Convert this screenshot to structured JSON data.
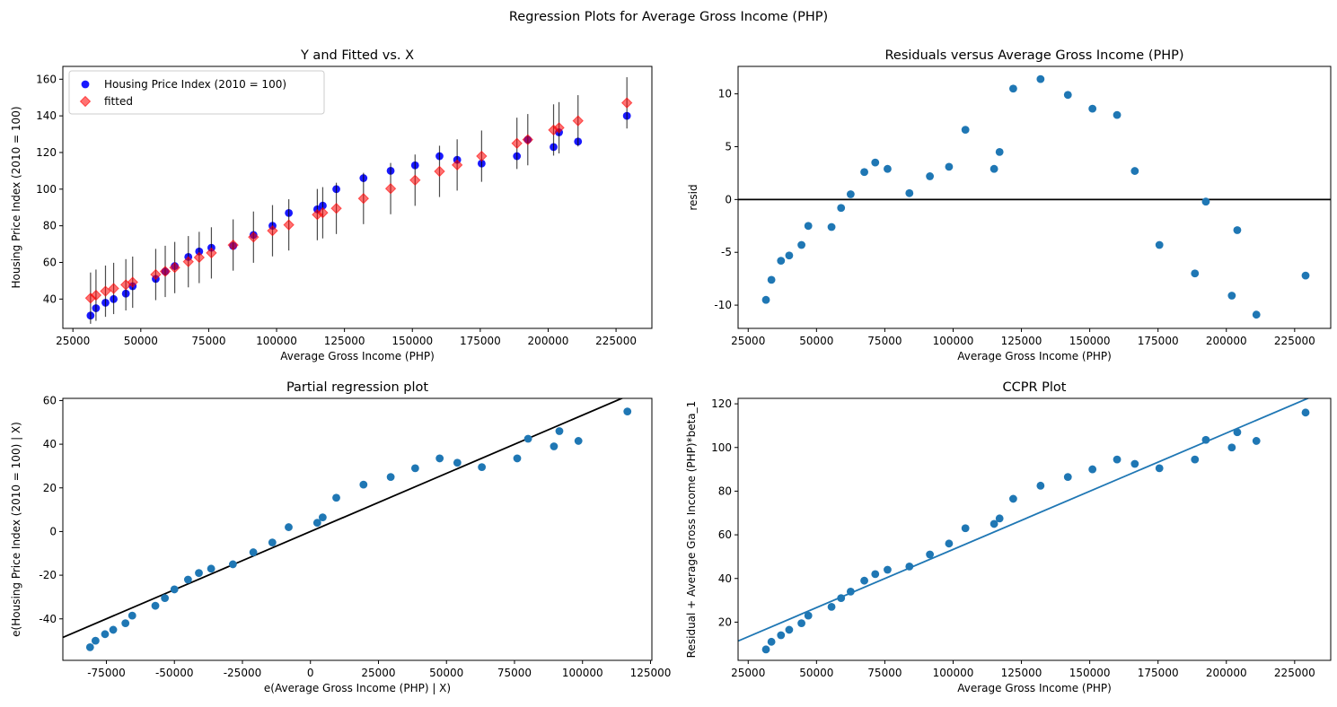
{
  "figure": {
    "suptitle": "Regression Plots for Average Gross Income (PHP)"
  },
  "colors": {
    "observed": "#0000ff",
    "fitted": "#ff0000",
    "scatter": "#1f77b4",
    "refline": "#000000",
    "errorbar": "#000000"
  },
  "chart_data": [
    {
      "id": "y-fitted",
      "type": "scatter",
      "title": "Y and Fitted vs. X",
      "xlabel": "Average Gross Income (PHP)",
      "ylabel": "Housing Price Index (2010 = 100)",
      "xlim": [
        21300,
        238200
      ],
      "ylim": [
        24,
        167
      ],
      "xticks": [
        25000,
        50000,
        75000,
        100000,
        125000,
        150000,
        175000,
        200000,
        225000
      ],
      "yticks": [
        40,
        60,
        80,
        100,
        120,
        140,
        160
      ],
      "legend": {
        "placement": "upper-left",
        "entries": [
          "Housing Price Index (2010 = 100)",
          "fitted"
        ]
      },
      "series": [
        {
          "name": "Housing Price Index (2010 = 100)",
          "marker": "circle",
          "x": [
            31500,
            33500,
            37000,
            40000,
            44500,
            47000,
            55500,
            59000,
            62500,
            67500,
            71500,
            76000,
            84000,
            91500,
            98500,
            104500,
            115000,
            117000,
            122000,
            132000,
            142000,
            151000,
            160000,
            166500,
            175500,
            188500,
            192500,
            202000,
            204000,
            211000,
            229000
          ],
          "y": [
            31,
            35,
            38,
            40,
            43,
            47,
            51,
            55,
            58,
            63,
            66,
            68,
            69,
            75,
            80,
            87,
            89,
            91,
            100,
            106,
            110,
            113,
            118,
            116,
            114,
            118,
            127,
            123,
            131,
            126,
            140
          ]
        },
        {
          "name": "fitted",
          "marker": "diamond",
          "x": [
            31500,
            33500,
            37000,
            40000,
            44500,
            47000,
            55500,
            59000,
            62500,
            67500,
            71500,
            76000,
            84000,
            91500,
            98500,
            104500,
            115000,
            117000,
            122000,
            132000,
            142000,
            151000,
            160000,
            166500,
            175500,
            188500,
            192500,
            202000,
            204000,
            211000,
            229000
          ],
          "y": [
            40.5,
            42.1,
            44.3,
            45.8,
            47.8,
            49.2,
            53.4,
            55.1,
            57.2,
            60.4,
            62.7,
            65.2,
            69.5,
            73.8,
            77.3,
            80.5,
            86.1,
            87.1,
            89.5,
            94.9,
            100.3,
            104.9,
            109.7,
            113.2,
            118.0,
            125.0,
            127.0,
            132.3,
            133.5,
            137.3,
            147.1
          ],
          "ci_half_width": 14
        }
      ]
    },
    {
      "id": "residuals",
      "type": "scatter",
      "title": "Residuals versus Average Gross Income (PHP)",
      "xlabel": "Average Gross Income (PHP)",
      "ylabel": "resid",
      "xlim": [
        21300,
        238200
      ],
      "ylim": [
        -12.2,
        12.6
      ],
      "xticks": [
        25000,
        50000,
        75000,
        100000,
        125000,
        150000,
        175000,
        200000,
        225000
      ],
      "yticks": [
        -10,
        -5,
        0,
        5,
        10
      ],
      "hline": 0,
      "series": [
        {
          "x": [
            31500,
            33500,
            37000,
            40000,
            44500,
            47000,
            55500,
            59000,
            62500,
            67500,
            71500,
            76000,
            84000,
            91500,
            98500,
            104500,
            115000,
            117000,
            122000,
            132000,
            142000,
            151000,
            160000,
            166500,
            175500,
            188500,
            192500,
            202000,
            204000,
            211000,
            229000
          ],
          "y": [
            -9.5,
            -7.6,
            -5.8,
            -5.3,
            -4.3,
            -2.5,
            -2.6,
            -0.8,
            0.5,
            2.6,
            3.5,
            2.9,
            0.6,
            2.2,
            3.1,
            6.6,
            2.9,
            4.5,
            10.5,
            11.4,
            9.9,
            8.6,
            8.0,
            2.7,
            -4.3,
            -7.0,
            -0.2,
            -9.1,
            -2.9,
            -10.9,
            -7.2
          ]
        }
      ]
    },
    {
      "id": "partial-regression",
      "type": "scatter",
      "title": "Partial regression plot",
      "xlabel": "e(Average Gross Income (PHP) | X)",
      "ylabel": "e(Housing Price Index (2010 = 100) | X)",
      "xlim": [
        -91000,
        125500
      ],
      "ylim": [
        -59,
        61
      ],
      "xticks": [
        -75000,
        -50000,
        -25000,
        0,
        25000,
        50000,
        75000,
        100000,
        125000
      ],
      "yticks": [
        -40,
        -20,
        0,
        20,
        40,
        60
      ],
      "fit_line": {
        "slope": 0.000533,
        "intercept": 0
      },
      "series": [
        {
          "x": [
            -81000,
            -79000,
            -75500,
            -72500,
            -68000,
            -65500,
            -57000,
            -53500,
            -50000,
            -45000,
            -41000,
            -36500,
            -28500,
            -21000,
            -14000,
            -8000,
            2500,
            4500,
            9500,
            19500,
            29500,
            38500,
            47500,
            54000,
            63000,
            76000,
            80000,
            89500,
            91500,
            98500,
            116500
          ],
          "y": [
            -53,
            -50,
            -47,
            -45,
            -42,
            -38.5,
            -34,
            -30.5,
            -26.5,
            -22,
            -19,
            -17,
            -15,
            -9.5,
            -5,
            2,
            4,
            6.5,
            15.5,
            21.5,
            25,
            29,
            33.5,
            31.5,
            29.5,
            33.5,
            42.5,
            39,
            46,
            41.5,
            55
          ]
        }
      ]
    },
    {
      "id": "ccpr",
      "type": "scatter",
      "title": "CCPR Plot",
      "xlabel": "Average Gross Income (PHP)",
      "ylabel": "Residual + Average Gross Income (PHP)*beta_1",
      "xlim": [
        21300,
        238200
      ],
      "ylim": [
        2.5,
        122.5
      ],
      "xticks": [
        25000,
        50000,
        75000,
        100000,
        125000,
        150000,
        175000,
        200000,
        225000
      ],
      "yticks": [
        20,
        40,
        60,
        80,
        100,
        120
      ],
      "fit_line": {
        "slope": 0.000533,
        "intercept": 0
      },
      "series": [
        {
          "x": [
            31500,
            33500,
            37000,
            40000,
            44500,
            47000,
            55500,
            59000,
            62500,
            67500,
            71500,
            76000,
            84000,
            91500,
            98500,
            104500,
            115000,
            117000,
            122000,
            132000,
            142000,
            151000,
            160000,
            166500,
            175500,
            188500,
            192500,
            202000,
            204000,
            211000,
            229000
          ],
          "y": [
            7.5,
            11,
            14,
            16.5,
            19.5,
            23,
            27,
            31,
            34,
            39,
            42,
            44,
            45.5,
            51,
            56,
            63,
            65,
            67.5,
            76.5,
            82.5,
            86.5,
            90,
            94.5,
            92.5,
            90.5,
            94.5,
            103.5,
            100,
            107,
            103,
            116
          ]
        }
      ]
    }
  ]
}
